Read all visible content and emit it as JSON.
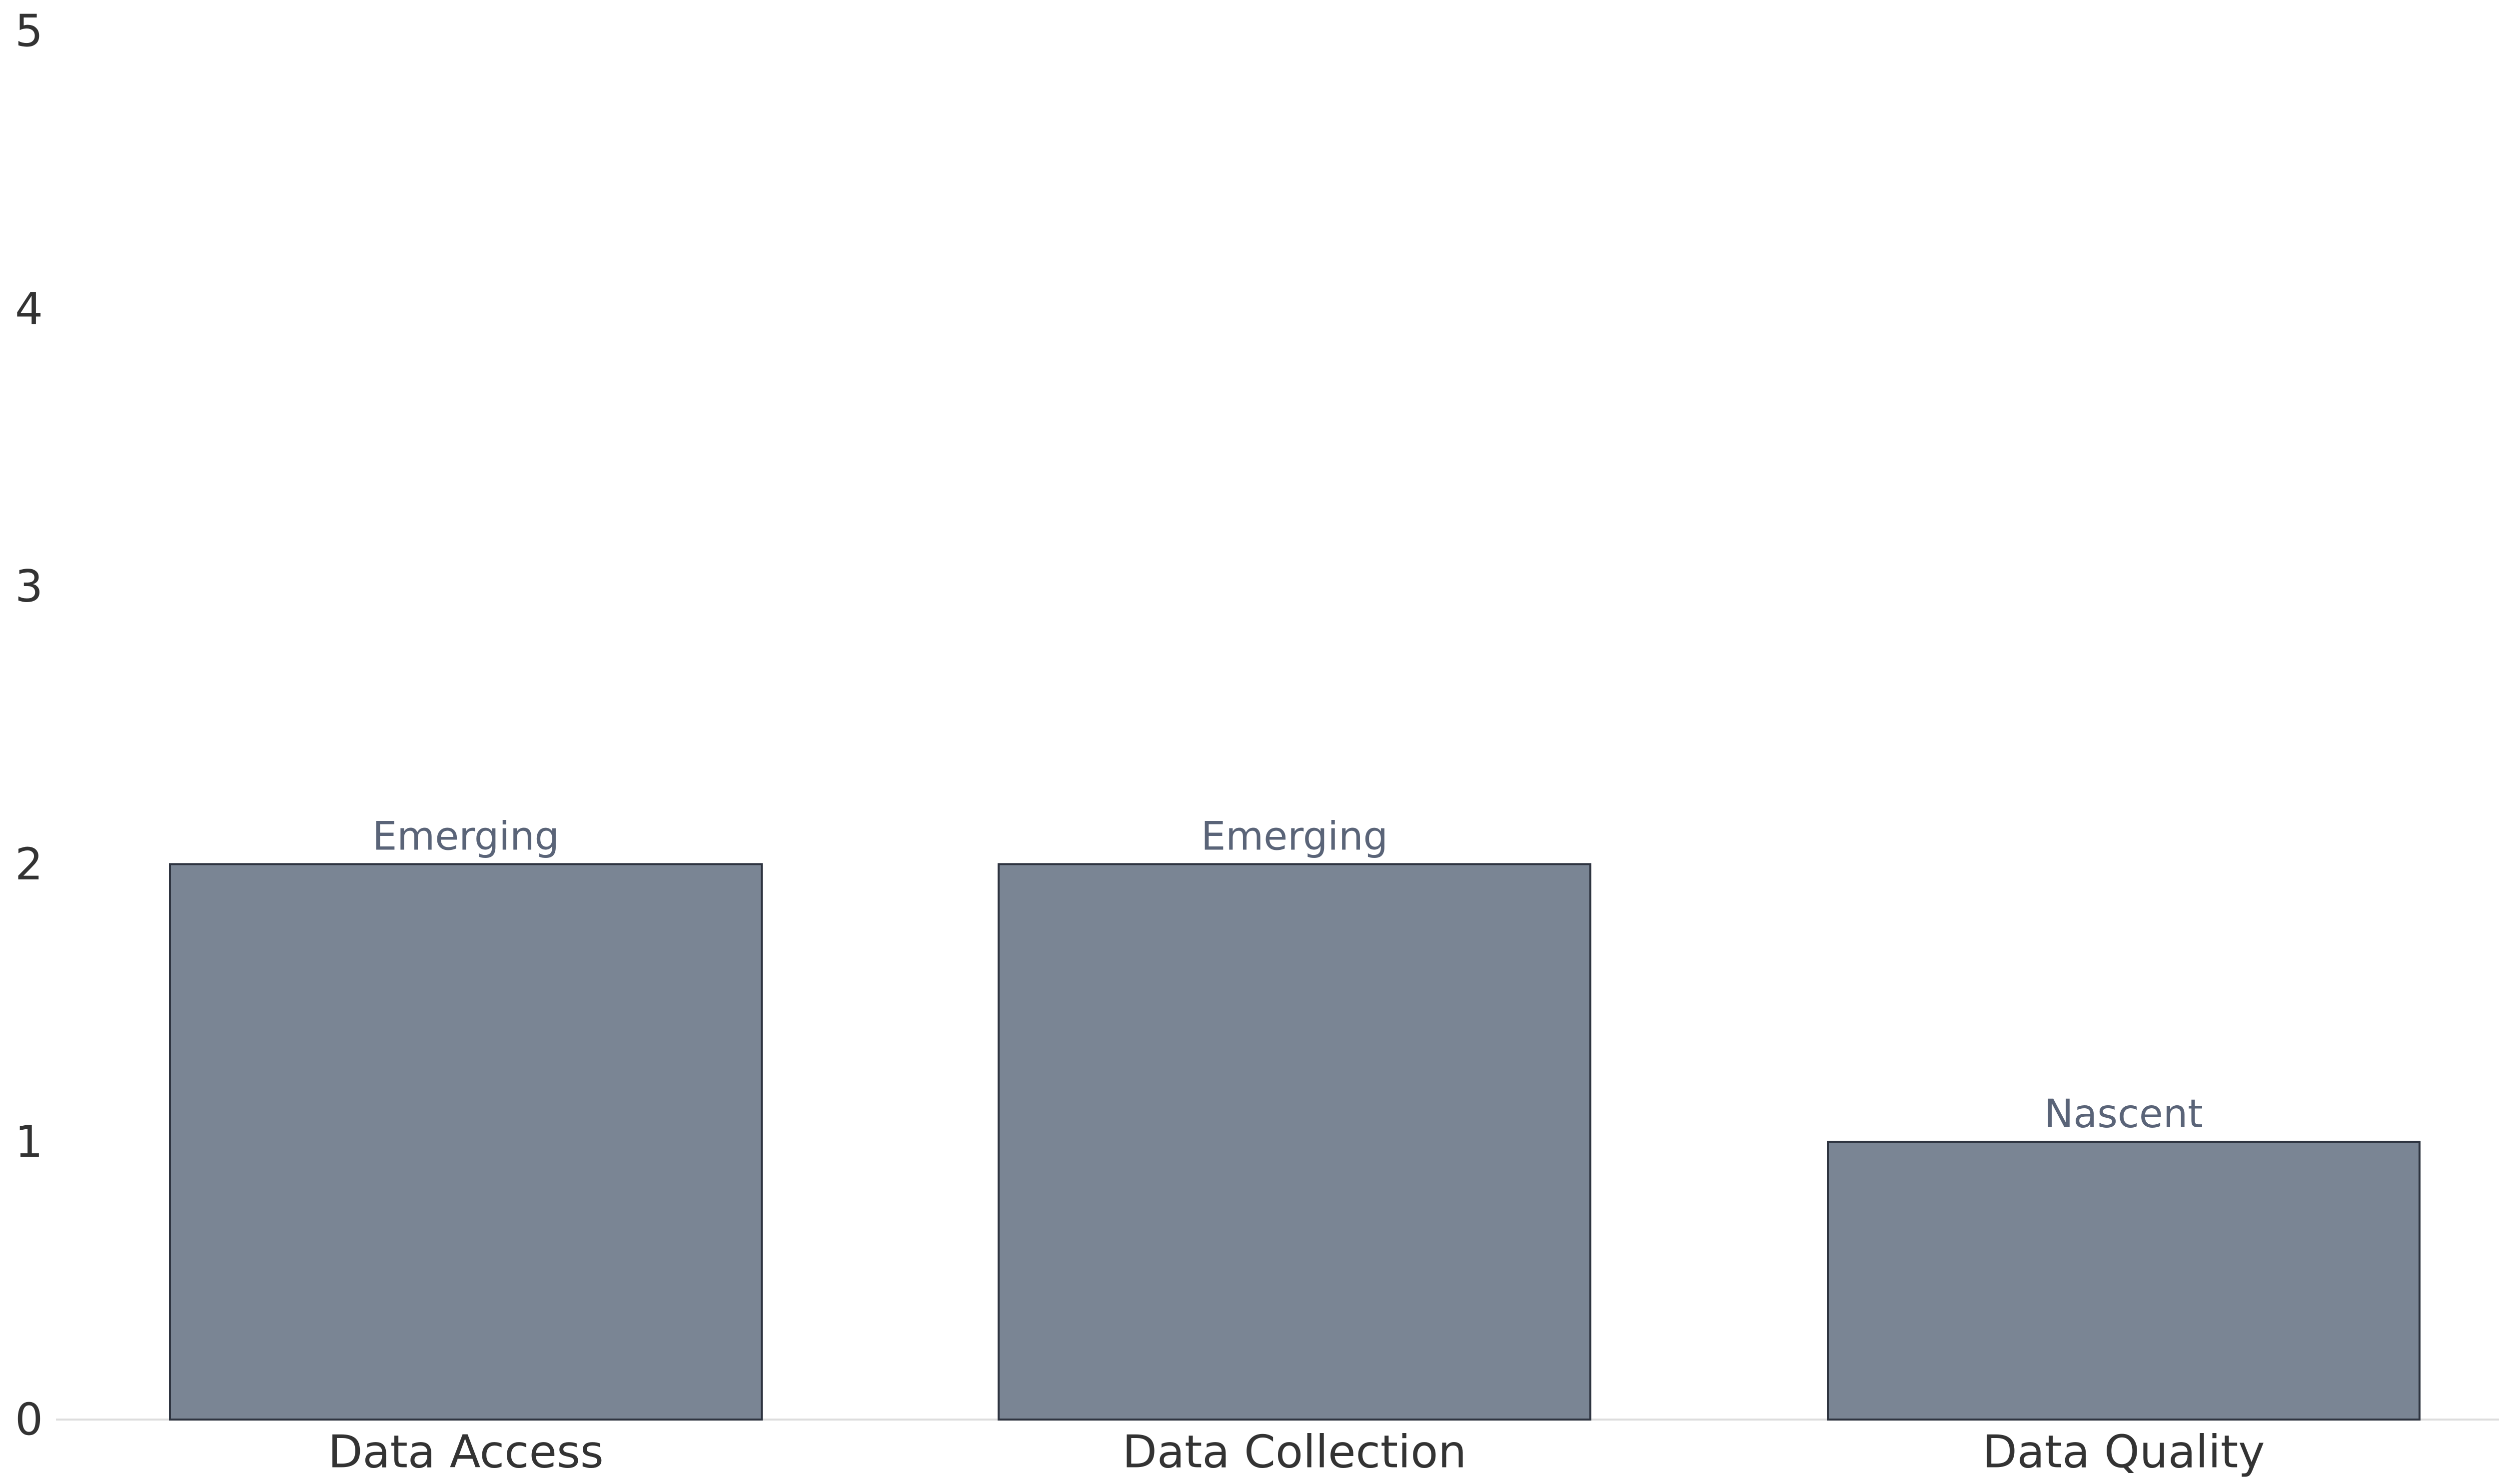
{
  "chart_data": {
    "type": "bar",
    "categories": [
      "Data Access",
      "Data Collection",
      "Data Quality"
    ],
    "values": [
      2,
      2,
      1
    ],
    "data_labels": [
      "Emerging",
      "Emerging",
      "Nascent"
    ],
    "title": "",
    "xlabel": "",
    "ylabel": "",
    "ylim": [
      0,
      5
    ],
    "yticks": [
      "0",
      "1",
      "2",
      "3",
      "4",
      "5"
    ],
    "grid": false,
    "legend": "none",
    "colors": {
      "bar_fill": "#7a8594",
      "bar_stroke": "#2e3440",
      "data_label": "#5a6478",
      "axis_line": "#dddddd",
      "text": "#333333"
    }
  }
}
